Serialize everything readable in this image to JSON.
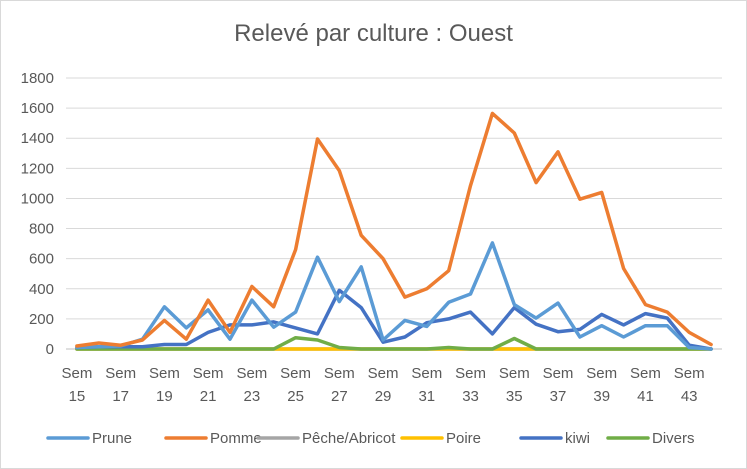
{
  "chart_data": {
    "type": "line",
    "title": "Relevé par culture : Ouest",
    "xlabel": "",
    "ylabel": "",
    "ylim": [
      0,
      1800
    ],
    "yticks": [
      0,
      200,
      400,
      600,
      800,
      1000,
      1200,
      1400,
      1600,
      1800
    ],
    "grid": "horizontal",
    "legend": "bottom",
    "x": [
      "15",
      "16",
      "17",
      "18",
      "19",
      "20",
      "21",
      "22",
      "23",
      "24",
      "25",
      "26",
      "27",
      "28",
      "29",
      "30",
      "31",
      "32",
      "33",
      "34",
      "35",
      "36",
      "37",
      "38",
      "39",
      "40",
      "41",
      "42",
      "43",
      "44"
    ],
    "x_tick_labels": [
      [
        "Sem",
        "15"
      ],
      [
        "Sem",
        "17"
      ],
      [
        "Sem",
        "19"
      ],
      [
        "Sem",
        "21"
      ],
      [
        "Sem",
        "23"
      ],
      [
        "Sem",
        "25"
      ],
      [
        "Sem",
        "27"
      ],
      [
        "Sem",
        "29"
      ],
      [
        "Sem",
        "31"
      ],
      [
        "Sem",
        "33"
      ],
      [
        "Sem",
        "35"
      ],
      [
        "Sem",
        "37"
      ],
      [
        "Sem",
        "39"
      ],
      [
        "Sem",
        "41"
      ],
      [
        "Sem",
        "43"
      ]
    ],
    "series": [
      {
        "name": "Prune",
        "color": "#5b9bd5",
        "values": [
          10,
          15,
          20,
          65,
          280,
          140,
          260,
          65,
          325,
          145,
          245,
          610,
          315,
          545,
          60,
          190,
          150,
          310,
          365,
          705,
          295,
          205,
          305,
          80,
          155,
          80,
          155,
          155,
          10,
          0
        ]
      },
      {
        "name": "Pomme",
        "color": "#ed7d31",
        "values": [
          20,
          40,
          25,
          60,
          190,
          65,
          325,
          110,
          415,
          280,
          660,
          1395,
          1185,
          755,
          600,
          345,
          400,
          520,
          1085,
          1565,
          1435,
          1105,
          1310,
          995,
          1040,
          535,
          295,
          245,
          110,
          30
        ]
      },
      {
        "name": "Pêche/Abricot",
        "color": "#a5a5a5",
        "values": [
          0,
          0,
          0,
          0,
          0,
          0,
          0,
          0,
          0,
          0,
          0,
          0,
          0,
          0,
          0,
          0,
          0,
          0,
          0,
          0,
          0,
          0,
          0,
          0,
          0,
          0,
          0,
          0,
          0,
          0
        ]
      },
      {
        "name": "Poire",
        "color": "#ffc000",
        "values": [
          0,
          0,
          0,
          0,
          0,
          0,
          0,
          0,
          0,
          0,
          0,
          0,
          0,
          0,
          0,
          0,
          0,
          0,
          0,
          0,
          0,
          0,
          0,
          0,
          0,
          0,
          0,
          0,
          0,
          0
        ]
      },
      {
        "name": "kiwi",
        "color": "#4472c4",
        "values": [
          10,
          15,
          15,
          15,
          30,
          30,
          110,
          160,
          160,
          180,
          140,
          100,
          390,
          275,
          45,
          80,
          175,
          200,
          245,
          100,
          275,
          165,
          115,
          130,
          230,
          160,
          235,
          205,
          25,
          0
        ]
      },
      {
        "name": "Divers",
        "color": "#70ad47",
        "values": [
          0,
          0,
          0,
          0,
          0,
          0,
          0,
          0,
          0,
          0,
          75,
          60,
          10,
          0,
          0,
          0,
          0,
          10,
          0,
          0,
          70,
          0,
          0,
          0,
          0,
          0,
          0,
          0,
          0,
          0
        ]
      }
    ]
  }
}
